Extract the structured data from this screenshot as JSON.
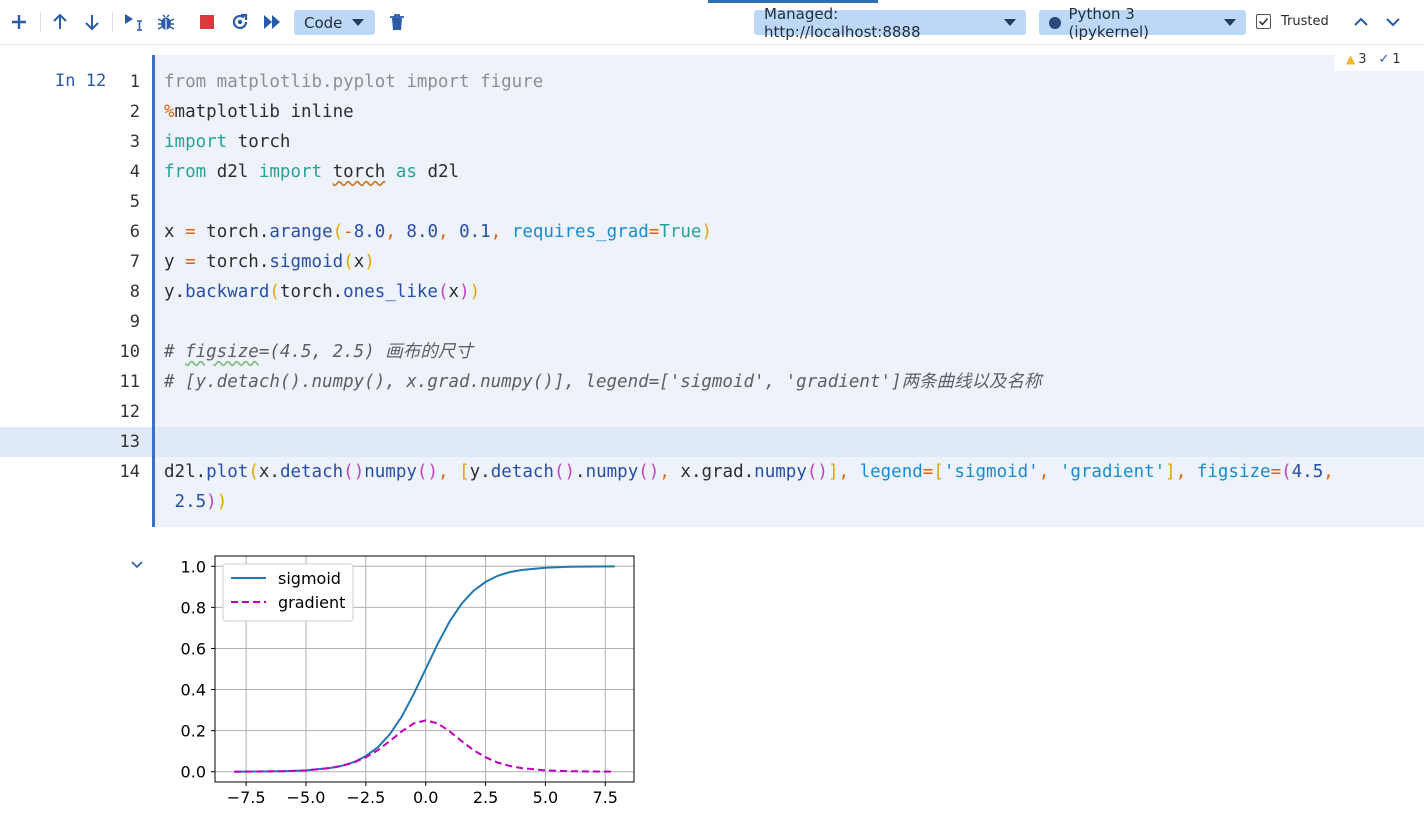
{
  "toolbar": {
    "cell_type": "Code",
    "server": "Managed: http://localhost:8888",
    "kernel": "Python 3 (ipykernel)",
    "trusted_label": "Trusted",
    "icons": [
      "plus-icon",
      "arrow-up-icon",
      "arrow-down-icon",
      "run-by-line-icon",
      "debug-icon",
      "stop-icon",
      "restart-icon",
      "run-all-icon",
      "delete-icon",
      "chevron-up-icon",
      "chevron-down-icon"
    ]
  },
  "cell": {
    "prompt": "In 12",
    "status": {
      "warnings": "3",
      "checks": "1"
    },
    "line_numbers": [
      "1",
      "2",
      "3",
      "4",
      "5",
      "6",
      "7",
      "8",
      "9",
      "10",
      "11",
      "12",
      "13",
      "14"
    ],
    "lines": {
      "l1": {
        "t0": "from matplotlib.pyplot import figure"
      },
      "l2": {
        "t0": "%",
        "t1": "matplotlib inline"
      },
      "l3": {
        "t0": "import",
        "t1": " torch"
      },
      "l4": {
        "t0": "from",
        "t1": " d2l ",
        "t2": "import",
        "t3": " ",
        "t4": "torch",
        "t5": " ",
        "t6": "as",
        "t7": " d2l"
      },
      "l6": {
        "t0": "x ",
        "t1": "=",
        "t2": " torch.",
        "t3": "arange",
        "t4": "(",
        "t5": "-",
        "t6": "8.0",
        ",": ",",
        "t7": " ",
        "t8": "8.0",
        "c2": ",",
        "t9": " ",
        "t10": "0.1",
        "c3": ",",
        "t11": " ",
        "t12": "requires_grad",
        "t13": "=",
        "t14": "True",
        "t15": ")"
      },
      "l7": {
        "t0": "y ",
        "t1": "=",
        "t2": " torch.",
        "t3": "sigmoid",
        "t4": "(",
        "t5": "x",
        "t6": ")"
      },
      "l8": {
        "t0": "y.",
        "t1": "backward",
        "t2": "(",
        "t3": "torch.",
        "t4": "ones_like",
        "t5": "(",
        "t6": "x",
        "t7": ")",
        "t8": ")"
      },
      "l10": {
        "t0": "# ",
        "t1": "figsize",
        "t2": "=(4.5, 2.5) 画布的尺寸"
      },
      "l11": {
        "t0": "# [y.detach().numpy(), x.grad.numpy()], legend=['sigmoid', 'gradient']两条曲线以及名称"
      },
      "l14a": {
        "t0": "d2l.",
        "t1": "plot",
        "t2": "(",
        "t3": "x.",
        "t4": "detach",
        "t5": "()",
        ".": ".",
        "t6": "numpy",
        "t7": "()",
        "c1": ",",
        "t8": " ",
        "t9": "[",
        "t10": "y.",
        "t11": "detach",
        "t12": "()",
        "d2": ".",
        "t13": "numpy",
        "t14": "()",
        "c2": ",",
        "t15": " x.grad.",
        "t16": "numpy",
        "t17": "()",
        "t18": "]",
        "c3": ",",
        "t19": " ",
        "t20": "legend",
        "t21": "=",
        "t22": "[",
        "t23": "'sigmoid'",
        "c4": ",",
        "t24": " ",
        "t25": "'gradient'",
        "t26": "]",
        "c5": ",",
        "t27": " ",
        "t28": "figsize",
        "t29": "=",
        "t30": "(",
        "t31": "4.5",
        "c6": ","
      },
      "l14b": {
        "t0": " ",
        "t1": "2.5",
        "t2": ")",
        "t3": ")"
      }
    }
  },
  "colors": {
    "sigmoid": "#1f77b4",
    "gradient": "#bf00bf",
    "accent": "#3b6fc7"
  },
  "chart_data": {
    "type": "line",
    "title": "",
    "xlabel": "",
    "ylabel": "",
    "xlim": [
      -8.8,
      8.7
    ],
    "ylim": [
      -0.05,
      1.05
    ],
    "xticks": [
      -7.5,
      -5.0,
      -2.5,
      0.0,
      2.5,
      5.0,
      7.5
    ],
    "xtick_labels": [
      "−7.5",
      "−5.0",
      "−2.5",
      "0.0",
      "2.5",
      "5.0",
      "7.5"
    ],
    "yticks": [
      0.0,
      0.2,
      0.4,
      0.6,
      0.8,
      1.0
    ],
    "ytick_labels": [
      "0.0",
      "0.2",
      "0.4",
      "0.6",
      "0.8",
      "1.0"
    ],
    "grid": true,
    "legend": "upper-left",
    "x": [
      -8.0,
      -7.0,
      -6.0,
      -5.0,
      -4.0,
      -3.5,
      -3.0,
      -2.5,
      -2.0,
      -1.5,
      -1.0,
      -0.5,
      0.0,
      0.5,
      1.0,
      1.5,
      2.0,
      2.5,
      3.0,
      3.5,
      4.0,
      5.0,
      6.0,
      7.0,
      7.9
    ],
    "series": [
      {
        "name": "sigmoid",
        "style": "solid",
        "values": [
          0.0003,
          0.0009,
          0.0025,
          0.0067,
          0.018,
          0.029,
          0.047,
          0.076,
          0.119,
          0.182,
          0.269,
          0.378,
          0.5,
          0.622,
          0.731,
          0.818,
          0.881,
          0.924,
          0.953,
          0.971,
          0.982,
          0.993,
          0.9975,
          0.9991,
          0.9996
        ]
      },
      {
        "name": "gradient",
        "style": "dashed",
        "values": [
          0.0003,
          0.0009,
          0.0025,
          0.0066,
          0.0177,
          0.0285,
          0.045,
          0.07,
          0.105,
          0.149,
          0.197,
          0.235,
          0.25,
          0.235,
          0.197,
          0.149,
          0.105,
          0.07,
          0.045,
          0.0285,
          0.0177,
          0.0066,
          0.0025,
          0.0009,
          0.0004
        ]
      }
    ]
  }
}
